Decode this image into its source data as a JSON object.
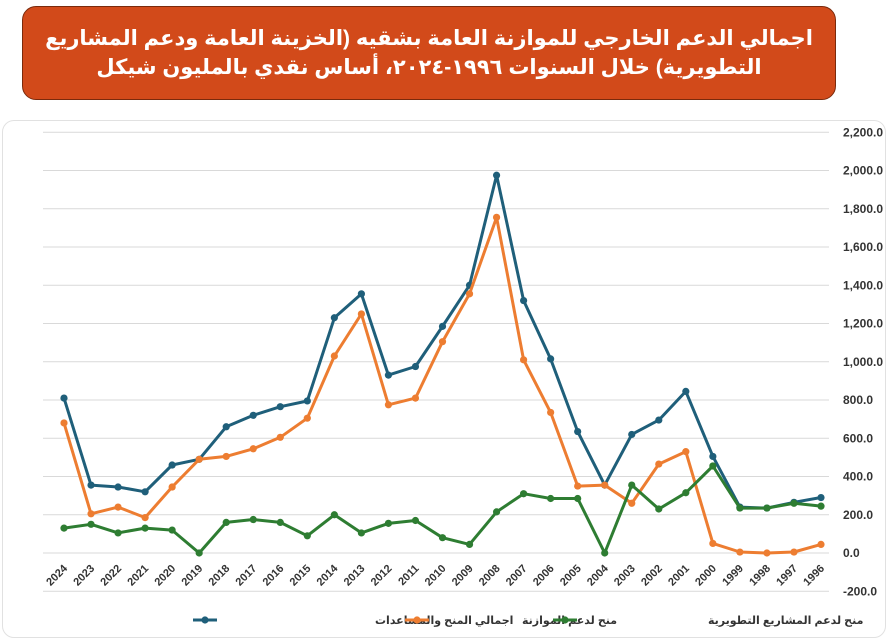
{
  "header": {
    "title": "اجمالي الدعم الخارجي للموازنة العامة بشقيه (الخزينة العامة ودعم المشاريع التطويرية) خلال السنوات ١٩٩٦-٢٠٢٤، أساس نقدي بالمليون شيكل"
  },
  "colors": {
    "title_bg": "#d24a1a",
    "total": "#1f5f7a",
    "budget": "#ed7d31",
    "projects": "#2e7d32",
    "grid": "#d9d9d9"
  },
  "chart_data": {
    "type": "line",
    "x": [
      "2024",
      "2023",
      "2022",
      "2021",
      "2020",
      "2019",
      "2018",
      "2017",
      "2016",
      "2015",
      "2014",
      "2013",
      "2012",
      "2011",
      "2010",
      "2009",
      "2008",
      "2007",
      "2006",
      "2005",
      "2004",
      "2003",
      "2002",
      "2001",
      "2000",
      "1999",
      "1998",
      "1997",
      "1996"
    ],
    "ylim": [
      -200,
      2200
    ],
    "yticks": [
      "-200.0",
      "0.0",
      "200.0",
      "400.0",
      "600.0",
      "800.0",
      "1,000.0",
      "1,200.0",
      "1,400.0",
      "1,600.0",
      "1,800.0",
      "2,000.0",
      "2,200.0"
    ],
    "ytick_values": [
      -200,
      0,
      200,
      400,
      600,
      800,
      1000,
      1200,
      1400,
      1600,
      1800,
      2000,
      2200
    ],
    "grid": true,
    "legend_position": "bottom",
    "series": [
      {
        "name": "اجمالي المنح والمساعدات",
        "values": [
          810,
          355,
          345,
          320,
          460,
          490,
          660,
          720,
          765,
          795,
          1230,
          1355,
          930,
          975,
          1185,
          1400,
          1975,
          1320,
          1015,
          635,
          355,
          620,
          695,
          845,
          505,
          240,
          235,
          265,
          290
        ]
      },
      {
        "name": "منح لدعم الموازنة",
        "values": [
          680,
          205,
          240,
          185,
          345,
          490,
          505,
          545,
          605,
          705,
          1030,
          1250,
          775,
          810,
          1105,
          1355,
          1755,
          1010,
          735,
          350,
          355,
          260,
          465,
          530,
          50,
          5,
          0,
          5,
          45
        ]
      },
      {
        "name": "منح لدعم المشاريع التطويرية",
        "values": [
          130,
          150,
          105,
          130,
          120,
          0,
          160,
          175,
          160,
          90,
          200,
          105,
          155,
          170,
          80,
          45,
          215,
          310,
          285,
          285,
          0,
          355,
          230,
          315,
          455,
          235,
          235,
          260,
          245
        ]
      }
    ]
  }
}
